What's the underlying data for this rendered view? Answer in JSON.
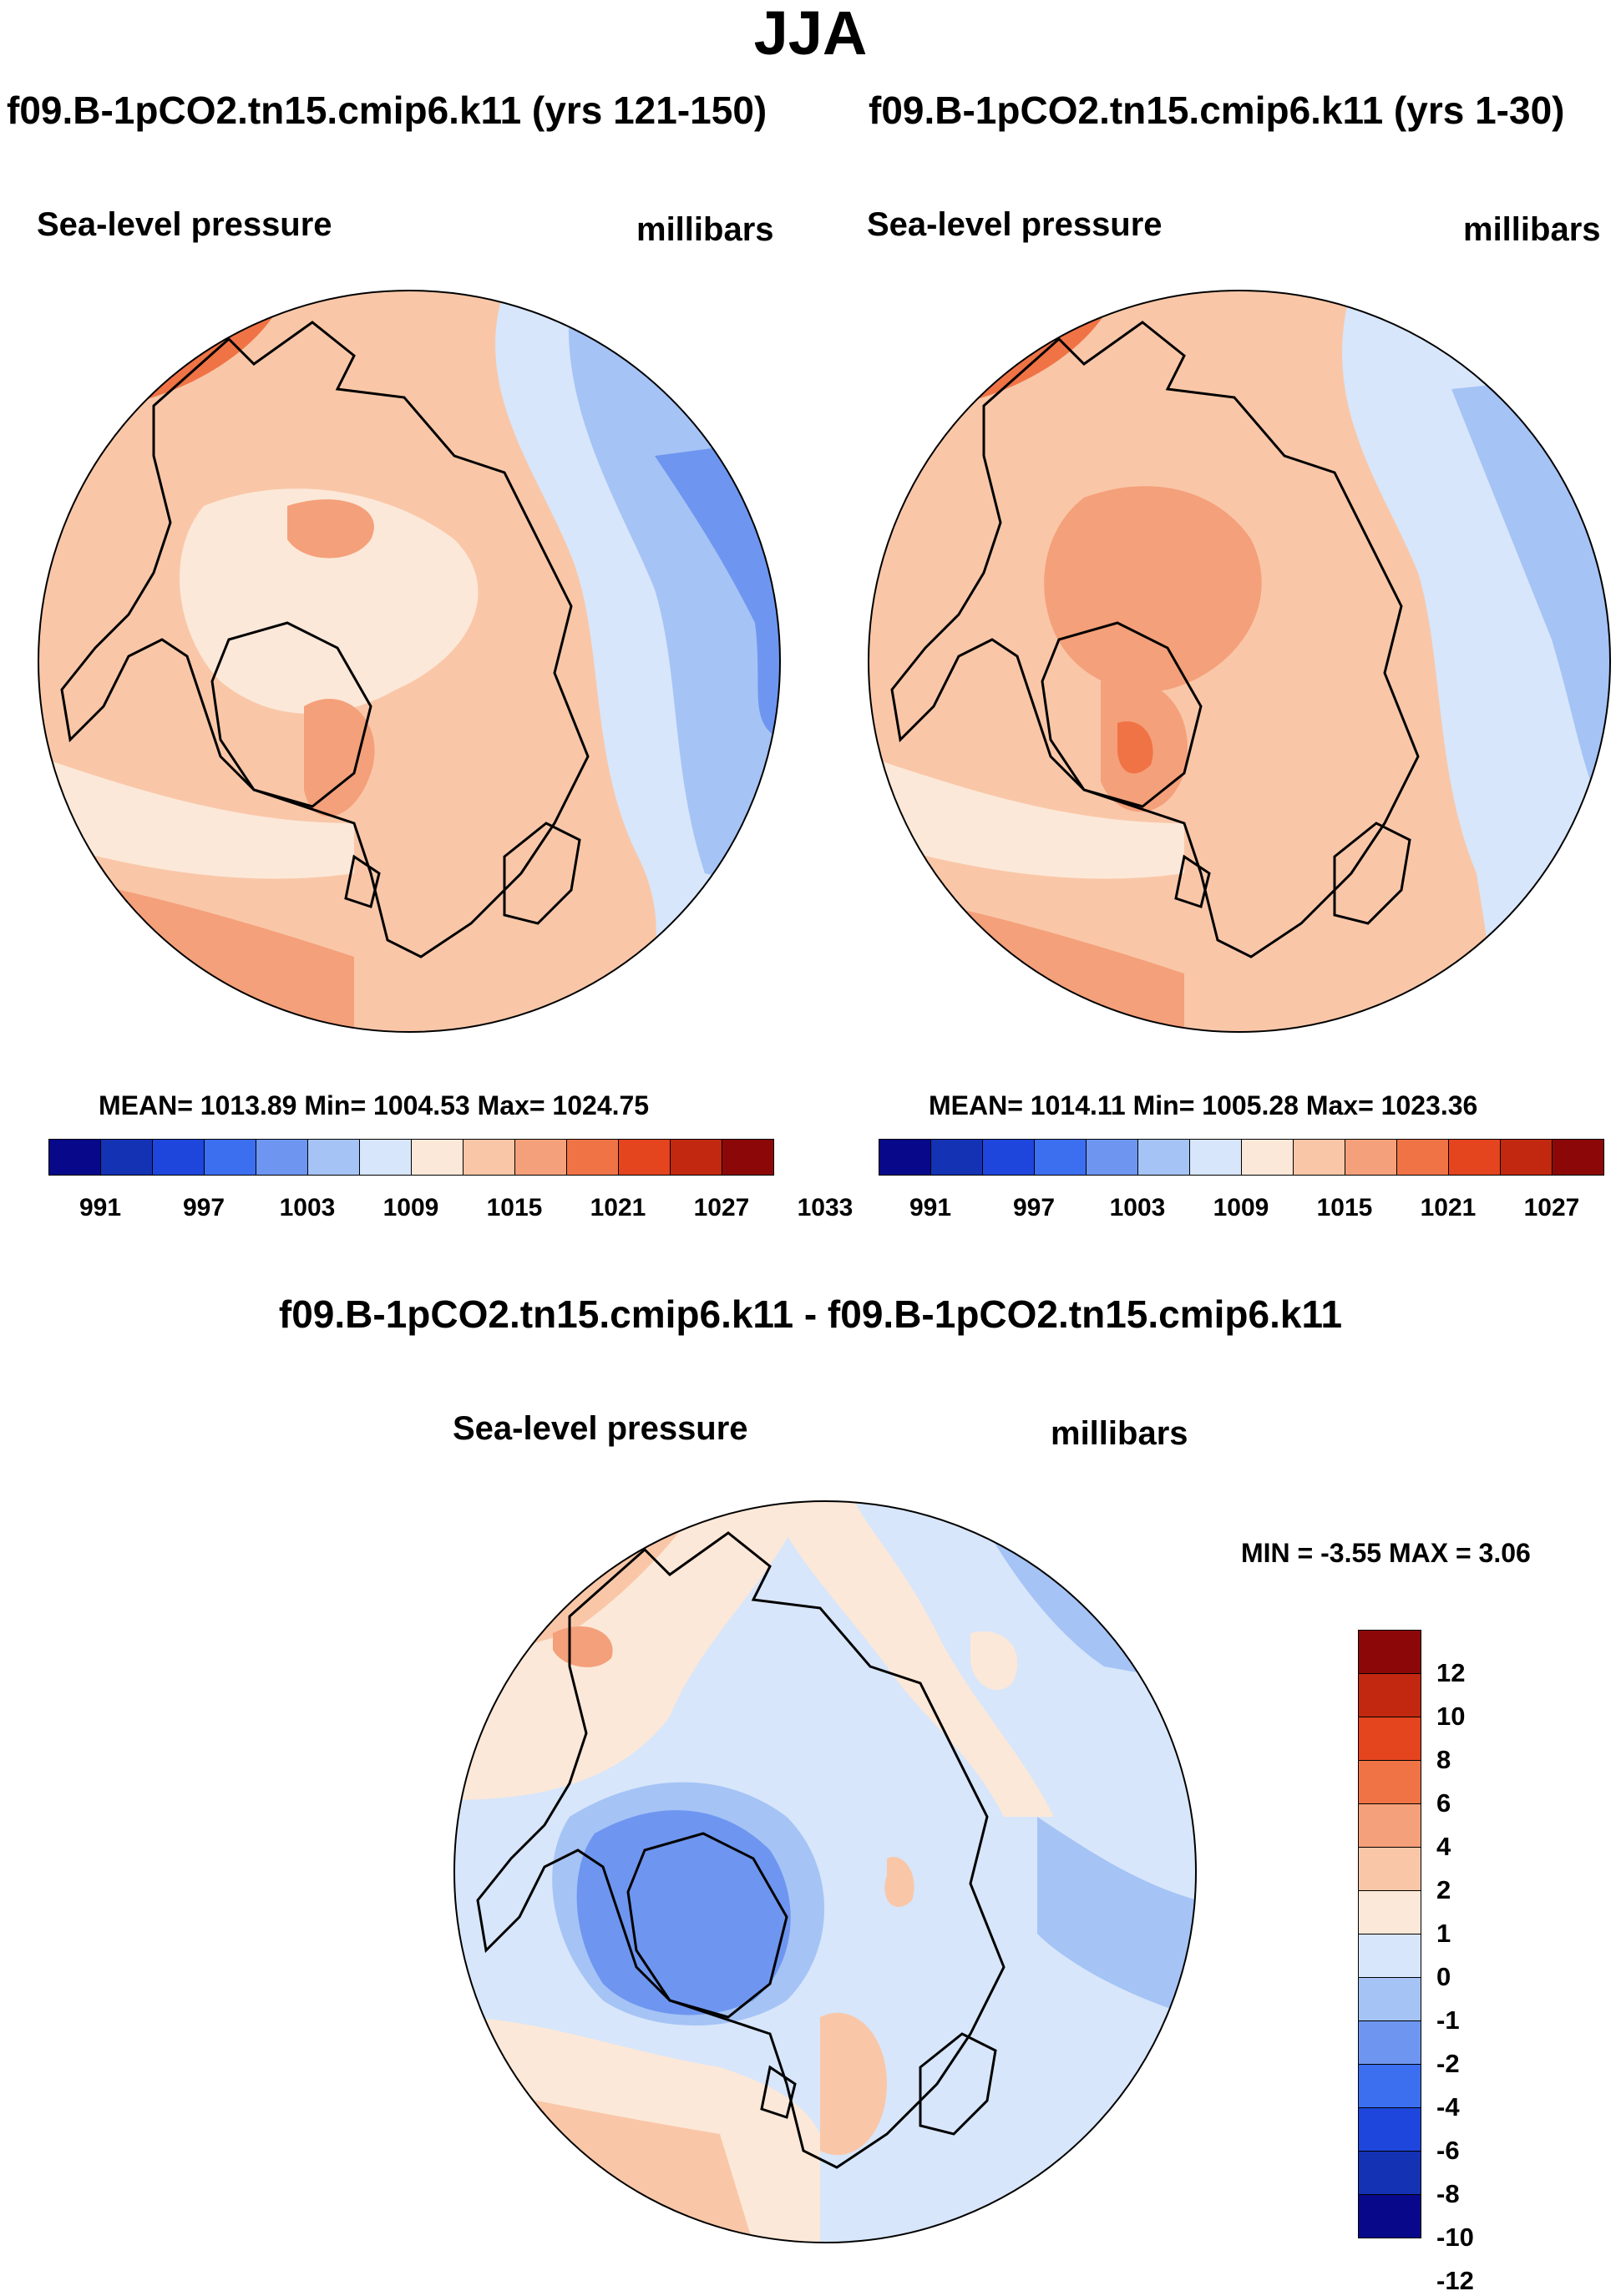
{
  "main_title": "JJA",
  "panels": [
    {
      "title": "f09.B-1pCO2.tn15.cmip6.k11 (yrs 121-150)",
      "variable": "Sea-level pressure",
      "units": "millibars",
      "stats": "MEAN= 1013.89  Min= 1004.53  Max= 1024.75"
    },
    {
      "title": "f09.B-1pCO2.tn15.cmip6.k11 (yrs 1-30)",
      "variable": "Sea-level pressure",
      "units": "millibars",
      "stats": "MEAN= 1014.11  Min= 1005.28  Max= 1023.36"
    }
  ],
  "colorbar": {
    "colors": [
      "#08088a",
      "#1432b4",
      "#1e46dc",
      "#3c6ef0",
      "#6e96f0",
      "#a5c3f5",
      "#d7e6fa",
      "#fce8d8",
      "#f9c7a8",
      "#f4a07a",
      "#f07346",
      "#e4441e",
      "#c22810",
      "#8c0808"
    ],
    "labels": [
      "991",
      "997",
      "1003",
      "1009",
      "1015",
      "1021",
      "1027",
      "1033"
    ]
  },
  "difference": {
    "title": "f09.B-1pCO2.tn15.cmip6.k11 - f09.B-1pCO2.tn15.cmip6.k11",
    "variable": "Sea-level pressure",
    "units": "millibars",
    "stats": "MIN =  -3.55 MAX =   3.06",
    "colorbar": {
      "colors_top_to_bottom": [
        "#8c0808",
        "#c22810",
        "#e4441e",
        "#f07346",
        "#f4a07a",
        "#f9c7a8",
        "#fce8d8",
        "#d7e6fa",
        "#a5c3f5",
        "#6e96f0",
        "#3c6ef0",
        "#1e46dc",
        "#1432b4",
        "#08088a"
      ],
      "labels": [
        "12",
        "10",
        "8",
        "6",
        "4",
        "2",
        "1",
        "0",
        "-1",
        "-2",
        "-4",
        "-6",
        "-8",
        "-10",
        "-12"
      ]
    }
  }
}
